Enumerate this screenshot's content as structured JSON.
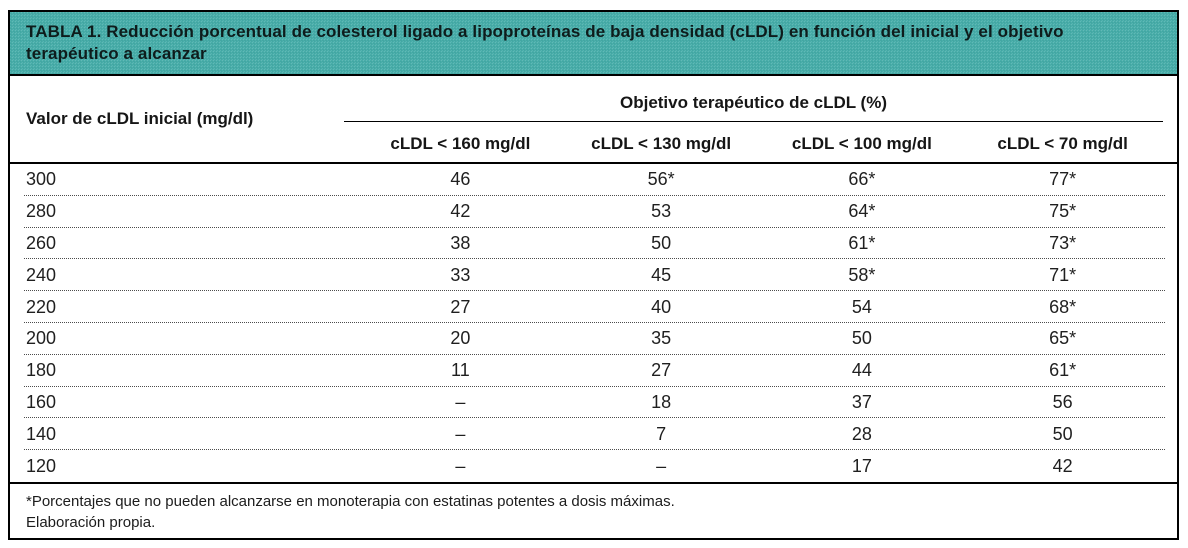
{
  "caption": "TABLA 1. Reducción porcentual de colesterol ligado a lipoproteínas de baja densidad (cLDL) en función del inicial y el objetivo terapéutico a alcanzar",
  "table": {
    "row_header": "Valor de cLDL inicial (mg/dl)",
    "group_header": "Objetivo terapéutico de cLDL (%)",
    "columns": [
      "cLDL < 160 mg/dl",
      "cLDL < 130 mg/dl",
      "cLDL < 100 mg/dl",
      "cLDL < 70 mg/dl"
    ],
    "rows": [
      {
        "initial": "300",
        "values": [
          "46",
          "56*",
          "66*",
          "77*"
        ]
      },
      {
        "initial": "280",
        "values": [
          "42",
          "53",
          "64*",
          "75*"
        ]
      },
      {
        "initial": "260",
        "values": [
          "38",
          "50",
          "61*",
          "73*"
        ]
      },
      {
        "initial": "240",
        "values": [
          "33",
          "45",
          "58*",
          "71*"
        ]
      },
      {
        "initial": "220",
        "values": [
          "27",
          "40",
          "54",
          "68*"
        ]
      },
      {
        "initial": "200",
        "values": [
          "20",
          "35",
          "50",
          "65*"
        ]
      },
      {
        "initial": "180",
        "values": [
          "11",
          "27",
          "44",
          "61*"
        ]
      },
      {
        "initial": "160",
        "values": [
          "–",
          "18",
          "37",
          "56"
        ]
      },
      {
        "initial": "140",
        "values": [
          "–",
          "7",
          "28",
          "50"
        ]
      },
      {
        "initial": "120",
        "values": [
          "–",
          "–",
          "17",
          "42"
        ]
      }
    ]
  },
  "footnotes": [
    "*Porcentajes que no pueden alcanzarse en monoterapia con estatinas potentes a dosis máximas.",
    "Elaboración propia."
  ],
  "colors": {
    "caption_bg": "#47aeaa",
    "border": "#000000",
    "text": "#161616"
  }
}
